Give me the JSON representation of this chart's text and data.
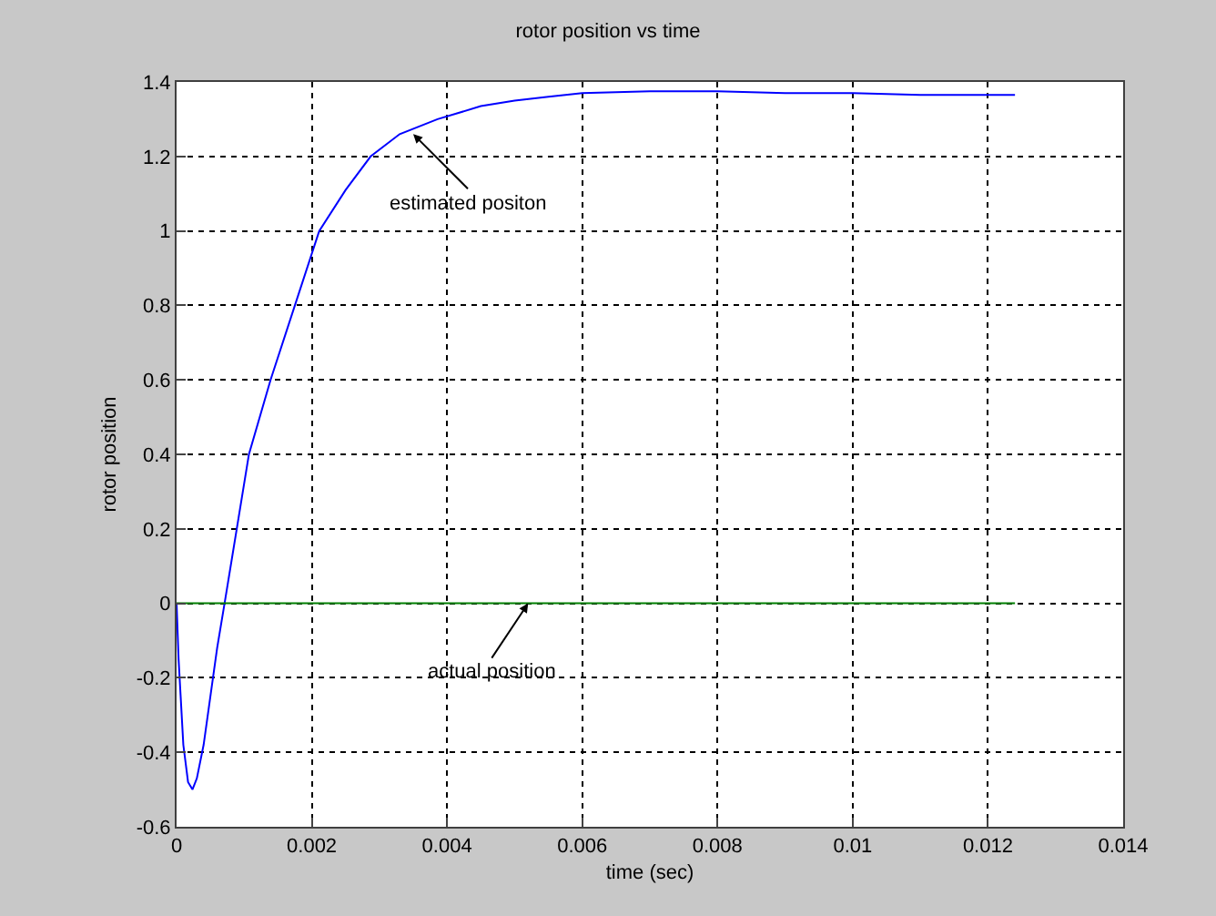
{
  "chart_data": {
    "type": "line",
    "title": "rotor position vs time",
    "xlabel": "time (sec)",
    "ylabel": "rotor position",
    "xlim": [
      0,
      0.014
    ],
    "xticks": [
      0,
      0.002,
      0.004,
      0.006,
      0.008,
      0.01,
      0.012,
      0.014
    ],
    "ylim": [
      -0.6,
      1.4
    ],
    "yticks": [
      -0.6,
      -0.4,
      -0.2,
      0,
      0.2,
      0.4,
      0.6,
      0.8,
      1,
      1.2,
      1.4
    ],
    "grid": true,
    "marker": "none",
    "line_style": "solid",
    "series": [
      {
        "color": "#0000ff",
        "x": [
          0,
          3e-05,
          0.0001,
          0.00017,
          0.000235,
          0.0003,
          0.0004,
          0.0005,
          0.0006,
          0.00071,
          0.00089,
          0.00107,
          0.00139,
          0.00175,
          0.00211,
          0.0025,
          0.00287,
          0.0033,
          0.00386,
          0.0045,
          0.005,
          0.0055,
          0.006,
          0.007,
          0.008,
          0.009,
          0.01,
          0.011,
          0.0124
        ],
        "values": [
          0,
          -0.15,
          -0.38,
          -0.48,
          -0.5,
          -0.47,
          -0.38,
          -0.25,
          -0.12,
          0,
          0.2,
          0.4,
          0.6,
          0.8,
          1,
          1.11,
          1.2,
          1.26,
          1.3,
          1.335,
          1.35,
          1.36,
          1.37,
          1.375,
          1.375,
          1.37,
          1.37,
          1.365,
          1.365
        ]
      },
      {
        "color": "#008000",
        "x": [
          0,
          0.0124
        ],
        "values": [
          0,
          0
        ]
      }
    ],
    "annotations": [
      {
        "text": "estimated positon",
        "x": 0.0035,
        "y": 1.26
      },
      {
        "text": "actual position",
        "x": 0.0052,
        "y": 0
      }
    ]
  }
}
